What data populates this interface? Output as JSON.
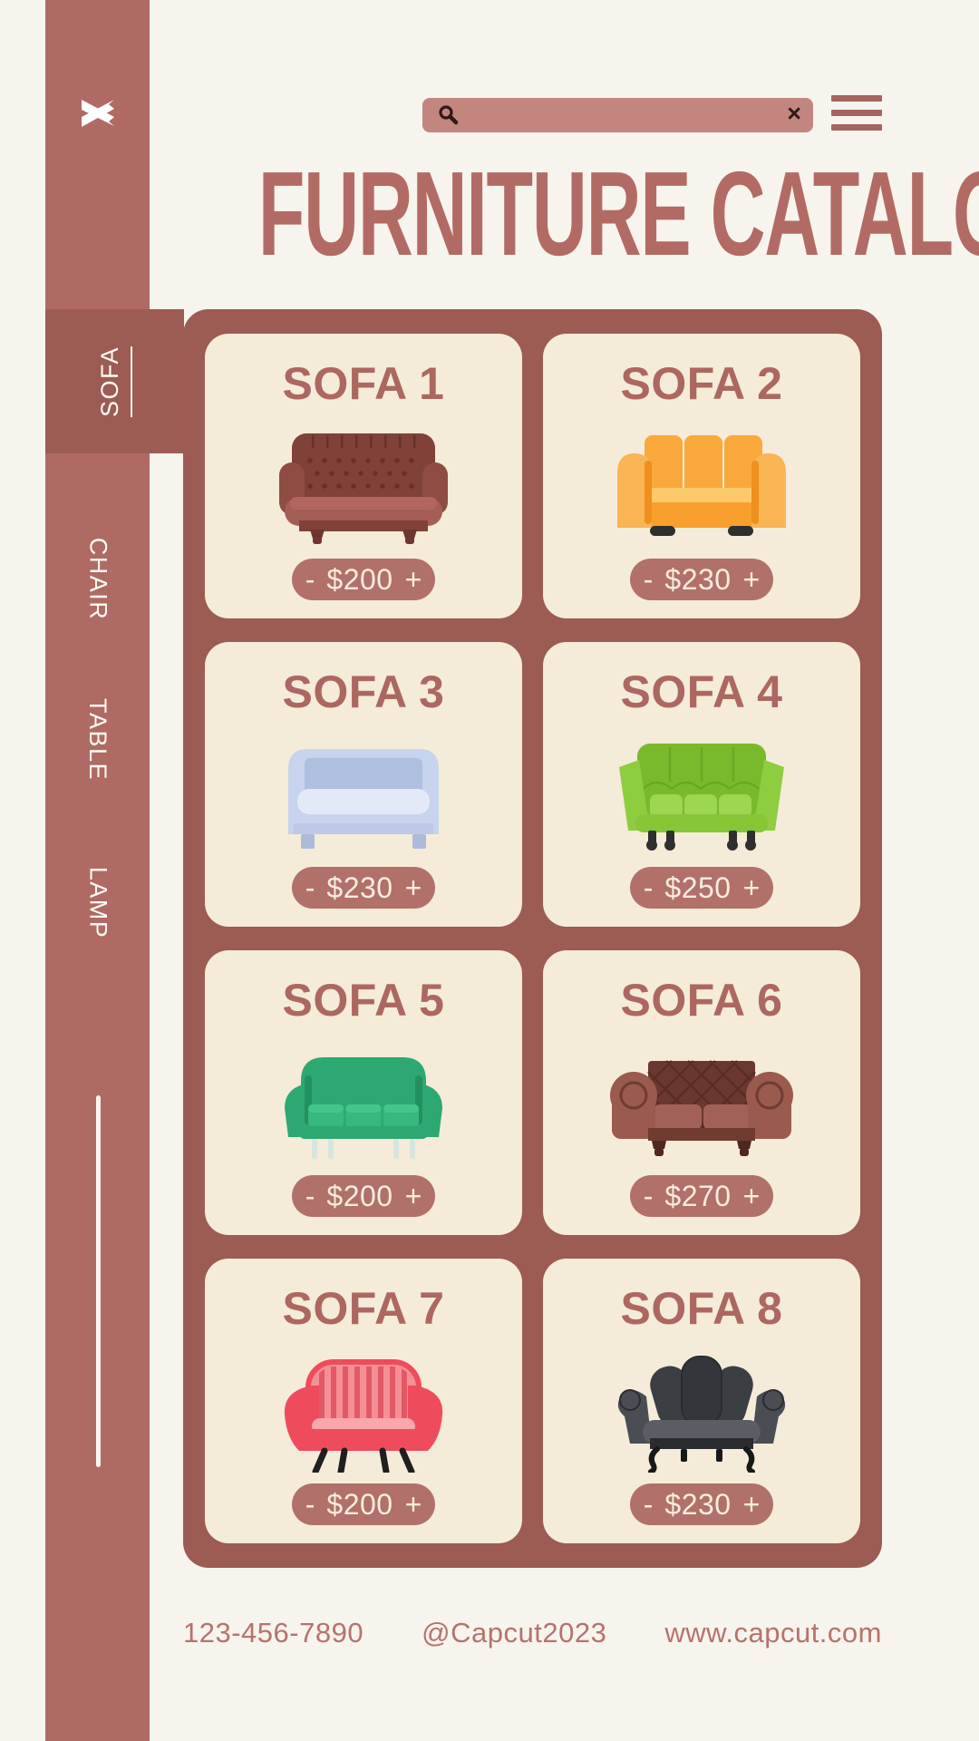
{
  "theme": {
    "bg": "#F7F4ED",
    "sidebar": "#B06A64",
    "board": "#9C5B53",
    "card": "#F5EBD9",
    "card-title": "#AC6760",
    "pill": "#B1706A",
    "pill-text": "#F6EDDC",
    "title": "#B26B64",
    "search": "#C2867F",
    "search-icon": "#2F1A18",
    "hamburger": "#A4655F",
    "footer": "#B5736C",
    "tab-text": "#FDF9F4",
    "line": "#FAF7F0"
  },
  "sidebar": {
    "logo_icon": "capcut-logo-icon",
    "tabs": [
      {
        "label": "SOFA",
        "active": true
      },
      {
        "label": "CHAIR",
        "active": false
      },
      {
        "label": "TABLE",
        "active": false
      },
      {
        "label": "LAMP",
        "active": false
      }
    ]
  },
  "topbar": {
    "search_value": "",
    "search_icon": "search-icon",
    "clear_label": "×",
    "menu_icon": "menu-icon"
  },
  "header": {
    "title": "FURNITURE CATALOG"
  },
  "catalog": {
    "price_prefix": "-",
    "price_suffix": "+",
    "products": [
      {
        "name": "SOFA 1",
        "price": "$200",
        "variant": "chesterfield",
        "palette": [
          "#7F4138",
          "#67312A",
          "#A55E55",
          "#B16760",
          "#8E4C43",
          "#6F362F"
        ]
      },
      {
        "name": "SOFA 2",
        "price": "$230",
        "variant": "modern",
        "palette": [
          "#F9B454",
          "#F89F2E",
          "#F9A93C",
          "#FCC96A",
          "#EF8F1F",
          "#2E2E2E"
        ]
      },
      {
        "name": "SOFA 3",
        "price": "$230",
        "variant": "classic",
        "palette": [
          "#C7D4ED",
          "#AFBFE0",
          "#E3EAF7",
          "#BCCAE7",
          "#ACBBDA",
          "#9FB0D4"
        ]
      },
      {
        "name": "SOFA 4",
        "price": "$250",
        "variant": "scandi",
        "palette": [
          "#79BA2D",
          "#69A824",
          "#8FCD40",
          "#9DD64F",
          "#86C637",
          "#2F2F2F"
        ]
      },
      {
        "name": "SOFA 5",
        "price": "$200",
        "variant": "midcentury",
        "palette": [
          "#2EA873",
          "#22915F",
          "#36B87E",
          "#45C58C",
          "#2EA873",
          "#D7E6DC"
        ]
      },
      {
        "name": "SOFA 6",
        "price": "$270",
        "variant": "chesterfield2",
        "palette": [
          "#9A5A4E",
          "#6B382F",
          "#5A2D25",
          "#A26158",
          "#713B32",
          "#4E2720"
        ]
      },
      {
        "name": "SOFA 7",
        "price": "$200",
        "variant": "loveseat",
        "palette": [
          "#EE4C5C",
          "#F58F96",
          "#E25966",
          "#F8A7AC",
          "#1F1F1F",
          "#D93B4C"
        ]
      },
      {
        "name": "SOFA 8",
        "price": "$230",
        "variant": "vintage",
        "palette": [
          "#3B3E43",
          "#2A2C30",
          "#33363A",
          "#4A4E54",
          "#5A5E64",
          "#17181A"
        ]
      }
    ]
  },
  "footer": {
    "phone": "123-456-7890",
    "handle": "@Capcut2023",
    "website": "www.capcut.com"
  }
}
